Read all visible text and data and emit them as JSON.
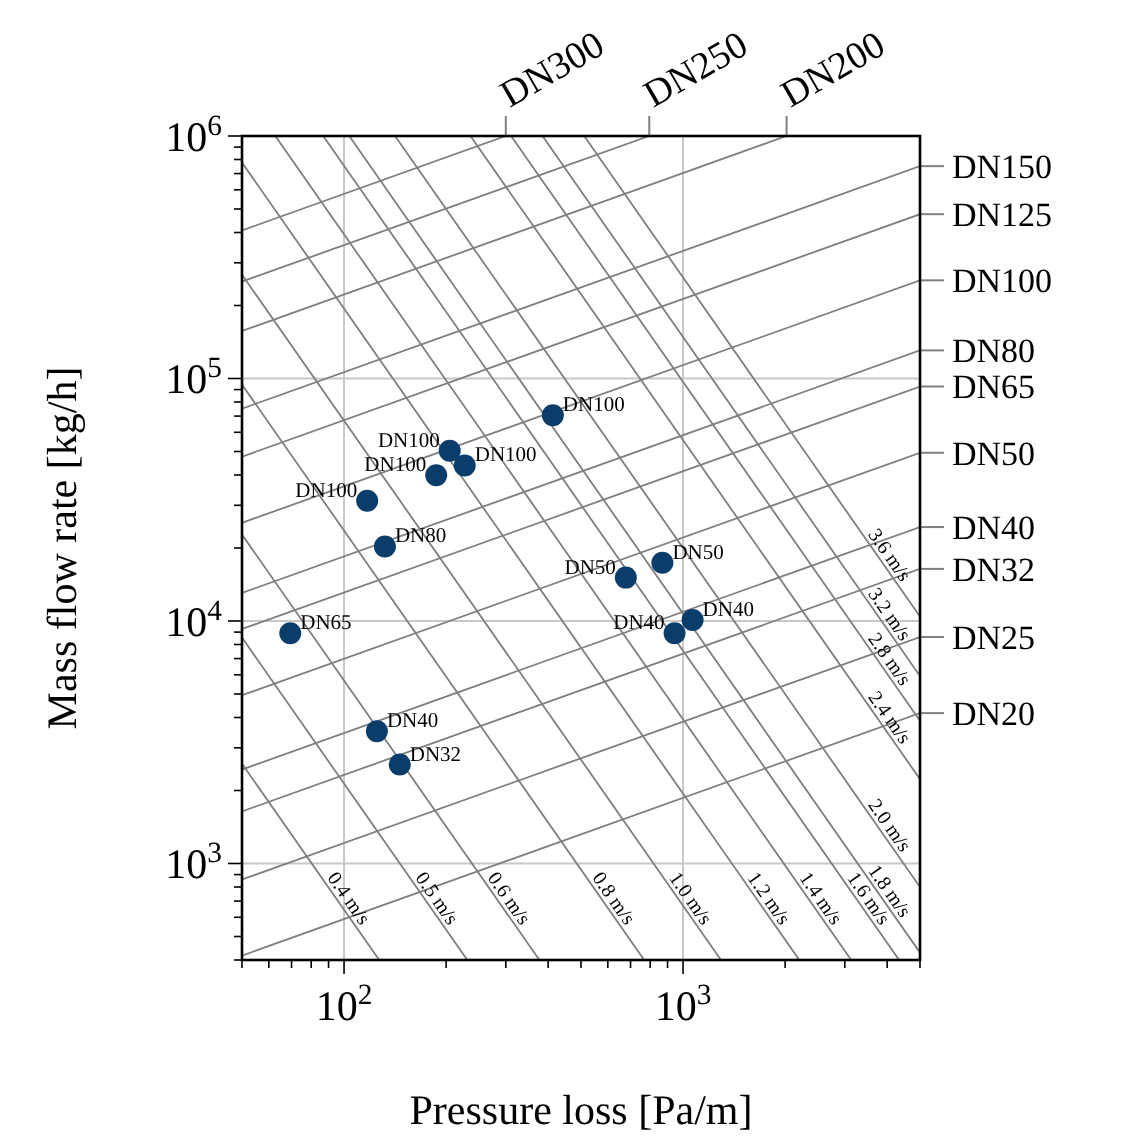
{
  "chart_data": {
    "type": "scatter",
    "xlabel": "Pressure loss [Pa/m]",
    "ylabel": "Mass flow rate [kg/h]",
    "log": "xy",
    "grid": true,
    "legend": "right",
    "xlim": [
      50,
      5000
    ],
    "ylim": [
      400,
      1000000
    ],
    "xticks": [
      {
        "value": 50,
        "label": null
      },
      {
        "value": 60,
        "label": null
      },
      {
        "value": 70,
        "label": null
      },
      {
        "value": 80,
        "label": null
      },
      {
        "value": 90,
        "label": null
      },
      {
        "value": 100,
        "label": "10$^{2}$"
      },
      {
        "value": 200,
        "label": null
      },
      {
        "value": 300,
        "label": null
      },
      {
        "value": 400,
        "label": null
      },
      {
        "value": 500,
        "label": null
      },
      {
        "value": 600,
        "label": null
      },
      {
        "value": 700,
        "label": null
      },
      {
        "value": 800,
        "label": null
      },
      {
        "value": 900,
        "label": null
      },
      {
        "value": 1000,
        "label": "10$^{3}$"
      },
      {
        "value": 2000,
        "label": null
      },
      {
        "value": 3000,
        "label": null
      },
      {
        "value": 4000,
        "label": null
      },
      {
        "value": 5000,
        "label": null
      }
    ],
    "yticks": [
      {
        "value": 400,
        "label": null
      },
      {
        "value": 500,
        "label": null
      },
      {
        "value": 600,
        "label": null
      },
      {
        "value": 700,
        "label": null
      },
      {
        "value": 800,
        "label": null
      },
      {
        "value": 900,
        "label": null
      },
      {
        "value": 1000,
        "label": "10$^{3}$"
      },
      {
        "value": 2000,
        "label": null
      },
      {
        "value": 3000,
        "label": null
      },
      {
        "value": 4000,
        "label": null
      },
      {
        "value": 5000,
        "label": null
      },
      {
        "value": 6000,
        "label": null
      },
      {
        "value": 7000,
        "label": null
      },
      {
        "value": 8000,
        "label": null
      },
      {
        "value": 9000,
        "label": null
      },
      {
        "value": 10000,
        "label": "10$^{4}$"
      },
      {
        "value": 20000,
        "label": null
      },
      {
        "value": 30000,
        "label": null
      },
      {
        "value": 40000,
        "label": null
      },
      {
        "value": 50000,
        "label": null
      },
      {
        "value": 60000,
        "label": null
      },
      {
        "value": 70000,
        "label": null
      },
      {
        "value": 80000,
        "label": null
      },
      {
        "value": 90000,
        "label": null
      },
      {
        "value": 100000,
        "label": "10$^{5}$"
      },
      {
        "value": 200000,
        "label": null
      },
      {
        "value": 300000,
        "label": null
      },
      {
        "value": 400000,
        "label": null
      },
      {
        "value": 500000,
        "label": null
      },
      {
        "value": 600000,
        "label": null
      },
      {
        "value": 700000,
        "label": null
      },
      {
        "value": 800000,
        "label": null
      },
      {
        "value": 900000,
        "label": null
      },
      {
        "value": 1000000,
        "label": "10$^{6}$"
      }
    ],
    "series": [
      {
        "marker": "circle",
        "color": "#0b3d6b",
        "x": [
          413,
          205,
          227,
          187,
          117,
          132,
          678,
          869,
          944,
          1067,
          69.4,
          125,
          146
        ],
        "values": [
          70600,
          50400,
          43800,
          39900,
          31300,
          20300,
          15100,
          17400,
          8910,
          10100,
          8910,
          3510,
          2560
        ]
      },
      {
        "type": "line",
        "name": "DN300",
        "color": "#7f7f7f",
        "x": [
          50,
          300
        ],
        "values": [
          408000,
          1000000
        ]
      },
      {
        "type": "line",
        "name": "DN250",
        "color": "#7f7f7f",
        "x": [
          50,
          795
        ],
        "values": [
          251000,
          1000000
        ]
      },
      {
        "type": "line",
        "name": "DN200",
        "color": "#7f7f7f",
        "x": [
          50,
          2020
        ],
        "values": [
          157000,
          1000000
        ]
      },
      {
        "type": "line",
        "name": "DN150",
        "color": "#7f7f7f",
        "x": [
          50,
          5000
        ],
        "values": [
          75100,
          751000
        ]
      },
      {
        "type": "line",
        "name": "DN125",
        "color": "#7f7f7f",
        "x": [
          50,
          5000
        ],
        "values": [
          47600,
          476000
        ]
      },
      {
        "type": "line",
        "name": "DN100",
        "color": "#7f7f7f",
        "x": [
          50,
          5000
        ],
        "values": [
          25400,
          254000
        ]
      },
      {
        "type": "line",
        "name": "DN80",
        "color": "#7f7f7f",
        "x": [
          50,
          5000
        ],
        "values": [
          13060,
          130600
        ]
      },
      {
        "type": "line",
        "name": "DN65",
        "color": "#7f7f7f",
        "x": [
          50,
          5000
        ],
        "values": [
          9270,
          92700
        ]
      },
      {
        "type": "line",
        "name": "DN50",
        "color": "#7f7f7f",
        "x": [
          50,
          5000
        ],
        "values": [
          4940,
          49400
        ]
      },
      {
        "type": "line",
        "name": "DN40",
        "color": "#7f7f7f",
        "x": [
          50,
          5000
        ],
        "values": [
          2440,
          24400
        ]
      },
      {
        "type": "line",
        "name": "DN32",
        "color": "#7f7f7f",
        "x": [
          50,
          5000
        ],
        "values": [
          1640,
          16400
        ]
      },
      {
        "type": "line",
        "name": "DN25",
        "color": "#7f7f7f",
        "x": [
          50,
          5000
        ],
        "values": [
          859,
          8590
        ]
      },
      {
        "type": "line",
        "name": "DN20",
        "color": "#7f7f7f",
        "x": [
          50,
          5000
        ],
        "values": [
          417,
          4170
        ]
      },
      {
        "type": "line",
        "name": "0.4 m/s",
        "color": "#7f7f7f",
        "x": [
          50,
          127
        ],
        "values": [
          2580,
          400
        ]
      },
      {
        "type": "line",
        "name": "0.5 m/s",
        "color": "#7f7f7f",
        "x": [
          50,
          231
        ],
        "values": [
          8548,
          400
        ]
      },
      {
        "type": "line",
        "name": "0.6 m/s",
        "color": "#7f7f7f",
        "x": [
          50,
          377
        ],
        "values": [
          22720,
          400
        ]
      },
      {
        "type": "line",
        "name": "0.8 m/s",
        "color": "#7f7f7f",
        "x": [
          50,
          768
        ],
        "values": [
          94400,
          400
        ]
      },
      {
        "type": "line",
        "name": "1.0 m/s",
        "color": "#7f7f7f",
        "x": [
          50,
          1294
        ],
        "values": [
          268000,
          400
        ]
      },
      {
        "type": "line",
        "name": "1.2 m/s",
        "color": "#7f7f7f",
        "x": [
          50,
          2203
        ],
        "values": [
          776800,
          400
        ]
      },
      {
        "type": "line",
        "name": "1.4 m/s",
        "color": "#7f7f7f",
        "x": [
          62.7,
          3134
        ],
        "values": [
          1000000,
          400
        ]
      },
      {
        "type": "line",
        "name": "1.6 m/s",
        "color": "#7f7f7f",
        "x": [
          86.8,
          4339
        ],
        "values": [
          1000000,
          400
        ]
      },
      {
        "type": "line",
        "name": "1.8 m/s",
        "color": "#7f7f7f",
        "x": [
          103.6,
          5000
        ],
        "values": [
          1000000,
          429
        ]
      },
      {
        "type": "line",
        "name": "2.0 m/s",
        "color": "#7f7f7f",
        "x": [
          141.4,
          5000
        ],
        "values": [
          1000000,
          800
        ]
      },
      {
        "type": "line",
        "name": "2.4 m/s",
        "color": "#7f7f7f",
        "x": [
          236,
          5000
        ],
        "values": [
          1000000,
          2228
        ]
      },
      {
        "type": "line",
        "name": "2.8 m/s",
        "color": "#7f7f7f",
        "x": [
          311,
          5000
        ],
        "values": [
          1000000,
          3880
        ]
      },
      {
        "type": "line",
        "name": "3.2 m/s",
        "color": "#7f7f7f",
        "x": [
          385,
          5000
        ],
        "values": [
          1000000,
          5932
        ]
      },
      {
        "type": "line",
        "name": "3.6 m/s",
        "color": "#7f7f7f",
        "x": [
          511,
          5000
        ],
        "values": [
          1000000,
          10430
        ]
      }
    ],
    "annotations": [
      {
        "text": "DN100",
        "x": 413,
        "y": 70600
      },
      {
        "text": "DN100",
        "x": 205,
        "y": 50400
      },
      {
        "text": "DN100",
        "x": 227,
        "y": 43800
      },
      {
        "text": "DN100",
        "x": 187,
        "y": 39900
      },
      {
        "text": "DN100",
        "x": 117,
        "y": 31300
      },
      {
        "text": "DN80",
        "x": 132,
        "y": 20300
      },
      {
        "text": "DN50",
        "x": 678,
        "y": 15100
      },
      {
        "text": "DN50",
        "x": 869,
        "y": 17400
      },
      {
        "text": "DN40",
        "x": 944,
        "y": 8910
      },
      {
        "text": "DN40",
        "x": 1067,
        "y": 10100
      },
      {
        "text": "DN65",
        "x": 69.4,
        "y": 8910
      },
      {
        "text": "DN40",
        "x": 125,
        "y": 3510
      },
      {
        "text": "DN32",
        "x": 146,
        "y": 2560
      }
    ]
  }
}
